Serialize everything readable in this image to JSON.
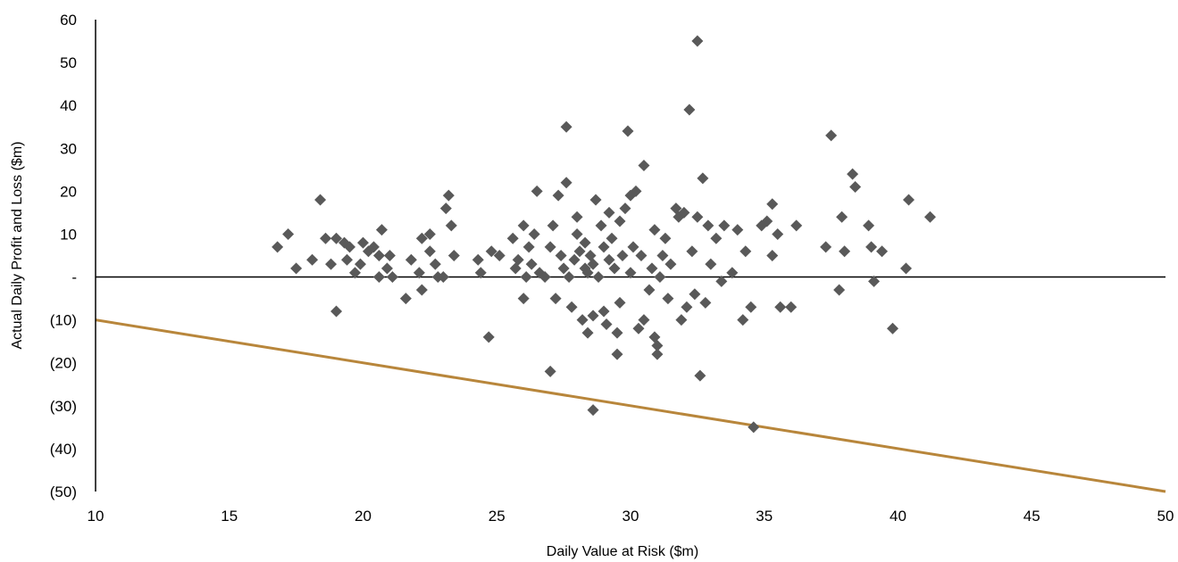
{
  "chart_data": {
    "type": "scatter",
    "title": "",
    "xlabel": "Daily Value at Risk ($m)",
    "ylabel": "Actual Daily Profit and Loss ($m)",
    "xlim": [
      10,
      50
    ],
    "ylim": [
      -50,
      60
    ],
    "x_ticks": [
      10,
      15,
      20,
      25,
      30,
      35,
      40,
      45,
      50
    ],
    "x_tick_labels": [
      "10",
      "15",
      "20",
      "25",
      "30",
      "35",
      "40",
      "45",
      "50"
    ],
    "y_ticks": [
      60,
      50,
      40,
      30,
      20,
      10,
      0,
      -10,
      -20,
      -30,
      -40,
      -50
    ],
    "y_tick_labels": [
      "60",
      "50",
      "40",
      "30",
      "20",
      "10",
      "-",
      "(10)",
      "(20)",
      "(30)",
      "(40)",
      "(50)"
    ],
    "grid": false,
    "legend": "none",
    "colors": {
      "points": "#595959",
      "line": "#B8863B",
      "axis": "#000000"
    },
    "series": [
      {
        "type": "scatter",
        "marker": "diamond",
        "points": [
          [
            16.8,
            7
          ],
          [
            17.2,
            10
          ],
          [
            17.5,
            2
          ],
          [
            18.1,
            4
          ],
          [
            18.4,
            18
          ],
          [
            18.6,
            9
          ],
          [
            18.8,
            3
          ],
          [
            19,
            9
          ],
          [
            19,
            -8
          ],
          [
            19.3,
            8
          ],
          [
            19.4,
            4
          ],
          [
            19.5,
            7
          ],
          [
            19.7,
            1
          ],
          [
            19.9,
            3
          ],
          [
            20,
            8
          ],
          [
            20.2,
            6
          ],
          [
            20.4,
            7
          ],
          [
            20.6,
            5
          ],
          [
            20.6,
            0
          ],
          [
            20.7,
            11
          ],
          [
            20.9,
            2
          ],
          [
            21,
            5
          ],
          [
            21.1,
            0
          ],
          [
            21.6,
            -5
          ],
          [
            21.8,
            4
          ],
          [
            22.1,
            1
          ],
          [
            22.2,
            -3
          ],
          [
            22.2,
            9
          ],
          [
            22.5,
            10
          ],
          [
            22.5,
            6
          ],
          [
            22.7,
            3
          ],
          [
            22.8,
            0
          ],
          [
            23,
            0
          ],
          [
            23.1,
            16
          ],
          [
            23.2,
            19
          ],
          [
            23.3,
            12
          ],
          [
            23.4,
            5
          ],
          [
            24.3,
            4
          ],
          [
            24.4,
            1
          ],
          [
            24.7,
            -14
          ],
          [
            24.8,
            6
          ],
          [
            25.1,
            5
          ],
          [
            25.6,
            9
          ],
          [
            25.7,
            2
          ],
          [
            25.8,
            4
          ],
          [
            26,
            12
          ],
          [
            26,
            -5
          ],
          [
            26.1,
            0
          ],
          [
            26.2,
            7
          ],
          [
            26.3,
            3
          ],
          [
            26.4,
            10
          ],
          [
            26.5,
            20
          ],
          [
            26.6,
            1
          ],
          [
            26.8,
            0
          ],
          [
            27,
            7
          ],
          [
            27,
            -22
          ],
          [
            27.1,
            12
          ],
          [
            27.2,
            -5
          ],
          [
            27.3,
            19
          ],
          [
            27.4,
            5
          ],
          [
            27.5,
            2
          ],
          [
            27.6,
            22
          ],
          [
            27.6,
            35
          ],
          [
            27.7,
            0
          ],
          [
            27.8,
            -7
          ],
          [
            27.9,
            4
          ],
          [
            28,
            10
          ],
          [
            28,
            14
          ],
          [
            28.1,
            6
          ],
          [
            28.2,
            -10
          ],
          [
            28.3,
            2
          ],
          [
            28.3,
            8
          ],
          [
            28.4,
            -13
          ],
          [
            28.4,
            1
          ],
          [
            28.5,
            5
          ],
          [
            28.6,
            -9
          ],
          [
            28.6,
            3
          ],
          [
            28.6,
            -31
          ],
          [
            28.7,
            18
          ],
          [
            28.8,
            0
          ],
          [
            28.9,
            12
          ],
          [
            29,
            -8
          ],
          [
            29,
            7
          ],
          [
            29.1,
            -11
          ],
          [
            29.2,
            4
          ],
          [
            29.2,
            15
          ],
          [
            29.3,
            9
          ],
          [
            29.4,
            2
          ],
          [
            29.5,
            -13
          ],
          [
            29.5,
            -18
          ],
          [
            29.6,
            -6
          ],
          [
            29.6,
            13
          ],
          [
            29.7,
            5
          ],
          [
            29.8,
            16
          ],
          [
            29.9,
            34
          ],
          [
            30,
            1
          ],
          [
            30,
            19
          ],
          [
            30.1,
            7
          ],
          [
            30.2,
            20
          ],
          [
            30.3,
            -12
          ],
          [
            30.4,
            5
          ],
          [
            30.5,
            -10
          ],
          [
            30.5,
            26
          ],
          [
            30.7,
            -3
          ],
          [
            30.8,
            2
          ],
          [
            30.9,
            11
          ],
          [
            30.9,
            -14
          ],
          [
            31,
            -18
          ],
          [
            31,
            -16
          ],
          [
            31.1,
            0
          ],
          [
            31.2,
            5
          ],
          [
            31.3,
            9
          ],
          [
            31.4,
            -5
          ],
          [
            31.5,
            3
          ],
          [
            31.7,
            16
          ],
          [
            31.8,
            14
          ],
          [
            31.9,
            -10
          ],
          [
            32,
            15
          ],
          [
            32.1,
            -7
          ],
          [
            32.2,
            39
          ],
          [
            32.3,
            6
          ],
          [
            32.4,
            -4
          ],
          [
            32.5,
            14
          ],
          [
            32.5,
            55
          ],
          [
            32.6,
            -23
          ],
          [
            32.7,
            23
          ],
          [
            32.8,
            -6
          ],
          [
            32.9,
            12
          ],
          [
            33,
            3
          ],
          [
            33.2,
            9
          ],
          [
            33.4,
            -1
          ],
          [
            33.5,
            12
          ],
          [
            33.8,
            1
          ],
          [
            34,
            11
          ],
          [
            34.2,
            -10
          ],
          [
            34.3,
            6
          ],
          [
            34.5,
            -7
          ],
          [
            34.6,
            -35
          ],
          [
            34.9,
            12
          ],
          [
            35.1,
            13
          ],
          [
            35.3,
            5
          ],
          [
            35.3,
            17
          ],
          [
            35.5,
            10
          ],
          [
            35.6,
            -7
          ],
          [
            36,
            -7
          ],
          [
            36.2,
            12
          ],
          [
            37.3,
            7
          ],
          [
            37.5,
            33
          ],
          [
            37.8,
            -3
          ],
          [
            37.9,
            14
          ],
          [
            38,
            6
          ],
          [
            38.3,
            24
          ],
          [
            38.4,
            21
          ],
          [
            38.9,
            12
          ],
          [
            39,
            7
          ],
          [
            39.1,
            -1
          ],
          [
            39.4,
            6
          ],
          [
            39.8,
            -12
          ],
          [
            40.3,
            2
          ],
          [
            40.4,
            18
          ],
          [
            41.2,
            14
          ]
        ]
      },
      {
        "type": "line",
        "points": [
          [
            10,
            -10
          ],
          [
            50,
            -50
          ]
        ]
      }
    ]
  }
}
